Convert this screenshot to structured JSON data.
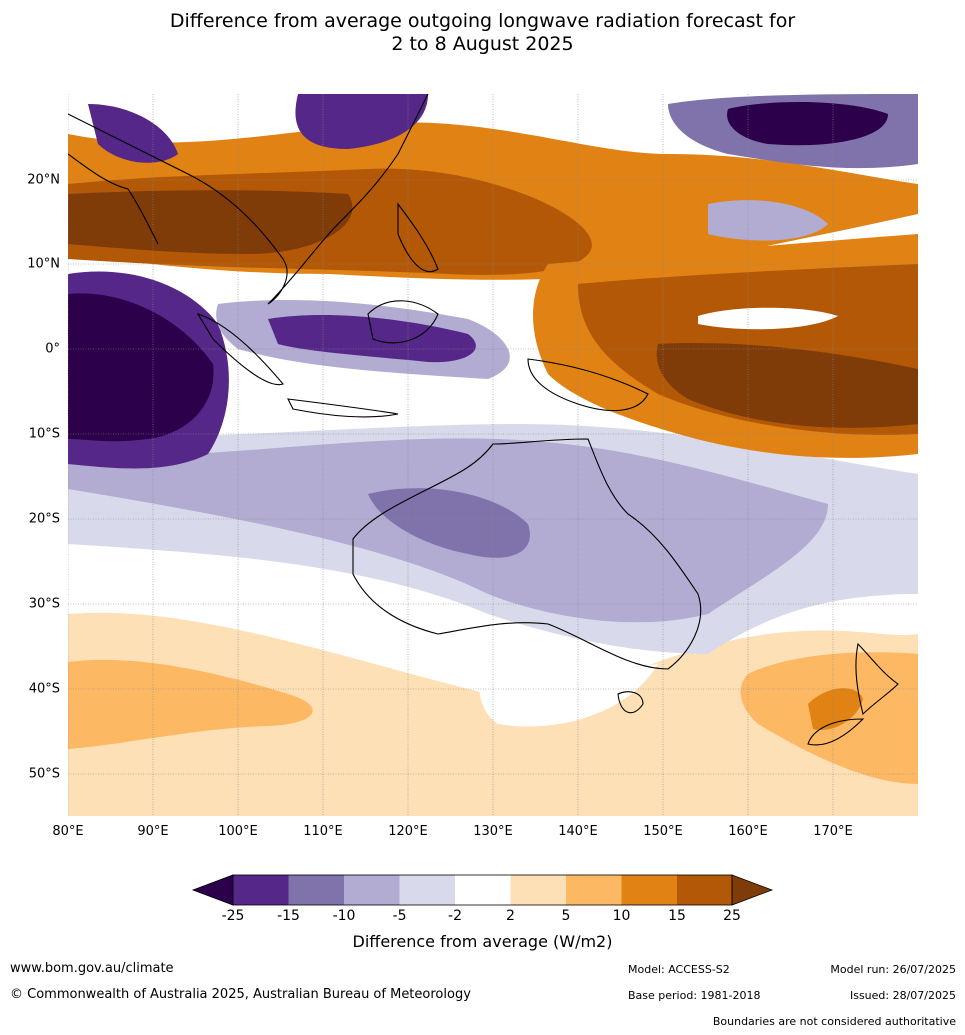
{
  "title_line1": "Difference from average outgoing longwave radiation forecast for",
  "title_line2": "2 to 8 August 2025",
  "lat_labels": [
    "20°N",
    "10°N",
    "0°",
    "10°S",
    "20°S",
    "30°S",
    "40°S",
    "50°S"
  ],
  "lon_labels": [
    "80°E",
    "90°E",
    "100°E",
    "110°E",
    "120°E",
    "130°E",
    "140°E",
    "150°E",
    "160°E",
    "170°E"
  ],
  "colorbar": {
    "ticks": [
      "-25",
      "-15",
      "-10",
      "-5",
      "-2",
      "2",
      "5",
      "10",
      "15",
      "25"
    ],
    "colors": [
      "#2d004b",
      "#542788",
      "#8073ac",
      "#b2abd2",
      "#d8daeb",
      "#ffffff",
      "#fee0b6",
      "#fdb863",
      "#e08214",
      "#b35806",
      "#7f3b08"
    ],
    "label": "Difference from average (W/m2)"
  },
  "footer": {
    "website": "www.bom.gov.au/climate",
    "copyright": "© Commonwealth of Australia 2025, Australian Bureau of Meteorology",
    "model": "Model: ACCESS-S2",
    "base_period": "Base period: 1981-2018",
    "model_run": "Model run: 26/07/2025",
    "issued": "Issued: 28/07/2025",
    "disclaimer": "Boundaries are not considered authoritative"
  }
}
